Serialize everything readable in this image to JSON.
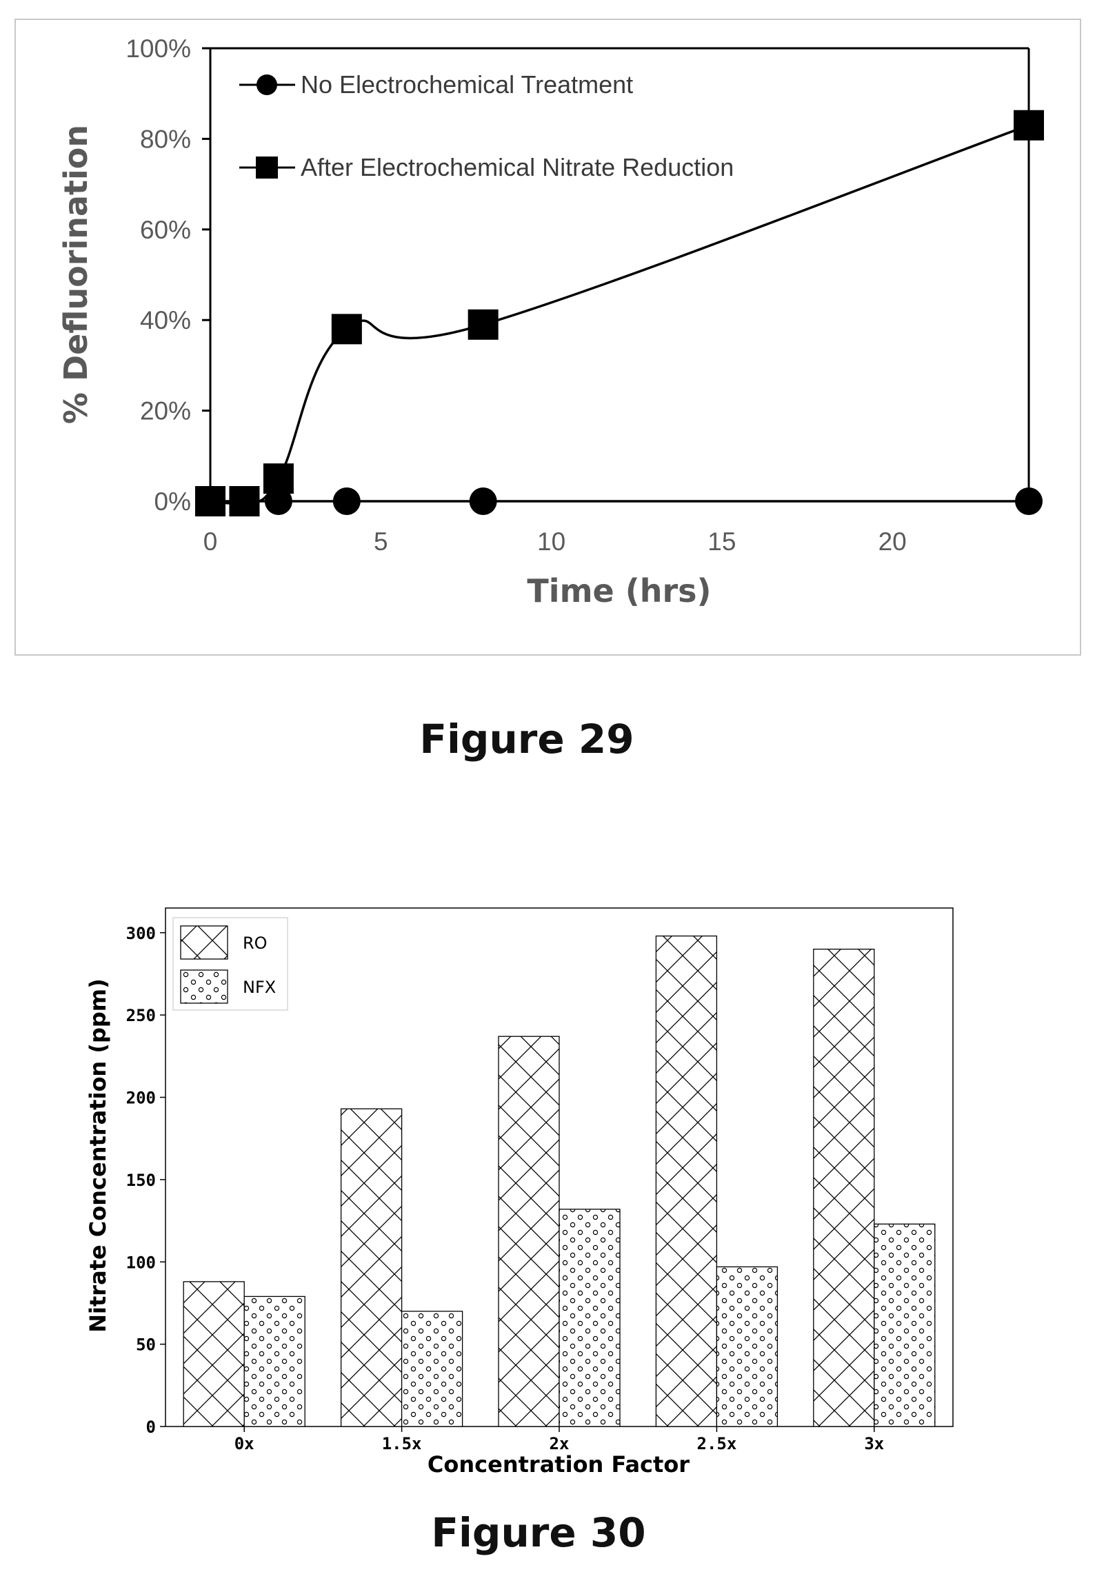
{
  "figures": [
    {
      "caption": "Figure 29"
    },
    {
      "caption": "Figure 30"
    }
  ],
  "chart_data": [
    {
      "type": "line",
      "title": "",
      "xlabel": "Time (hrs)",
      "ylabel": "% Defluorination",
      "xlim": [
        0,
        24
      ],
      "ylim": [
        0,
        100
      ],
      "x_ticks": [
        "0",
        "5",
        "10",
        "15",
        "20"
      ],
      "y_ticks": [
        "0%",
        "20%",
        "40%",
        "60%",
        "80%",
        "100%"
      ],
      "legend_position": "top-left",
      "grid": false,
      "series": [
        {
          "name": "No Electrochemical Treatment",
          "marker": "circle",
          "x": [
            0,
            2,
            4,
            8,
            24
          ],
          "y": [
            0,
            0,
            0,
            0,
            0
          ]
        },
        {
          "name": "After Electrochemical Nitrate Reduction",
          "marker": "square",
          "x": [
            0,
            1,
            2,
            4,
            8,
            24
          ],
          "y": [
            0,
            0,
            5,
            38,
            39,
            83
          ]
        }
      ]
    },
    {
      "type": "bar",
      "title": "",
      "xlabel": "Concentration Factor",
      "ylabel": "Nitrate Concentration (ppm)",
      "ylim": [
        0,
        315
      ],
      "y_ticks": [
        "0",
        "50",
        "100",
        "150",
        "200",
        "250",
        "300"
      ],
      "categories": [
        "0x",
        "1.5x",
        "2x",
        "2.5x",
        "3x"
      ],
      "legend_position": "top-left",
      "grid": false,
      "series": [
        {
          "name": "RO",
          "pattern": "crosshatch",
          "values": [
            88,
            193,
            237,
            298,
            290
          ]
        },
        {
          "name": "NFX",
          "pattern": "dots",
          "values": [
            79,
            70,
            132,
            97,
            123
          ]
        }
      ]
    }
  ]
}
